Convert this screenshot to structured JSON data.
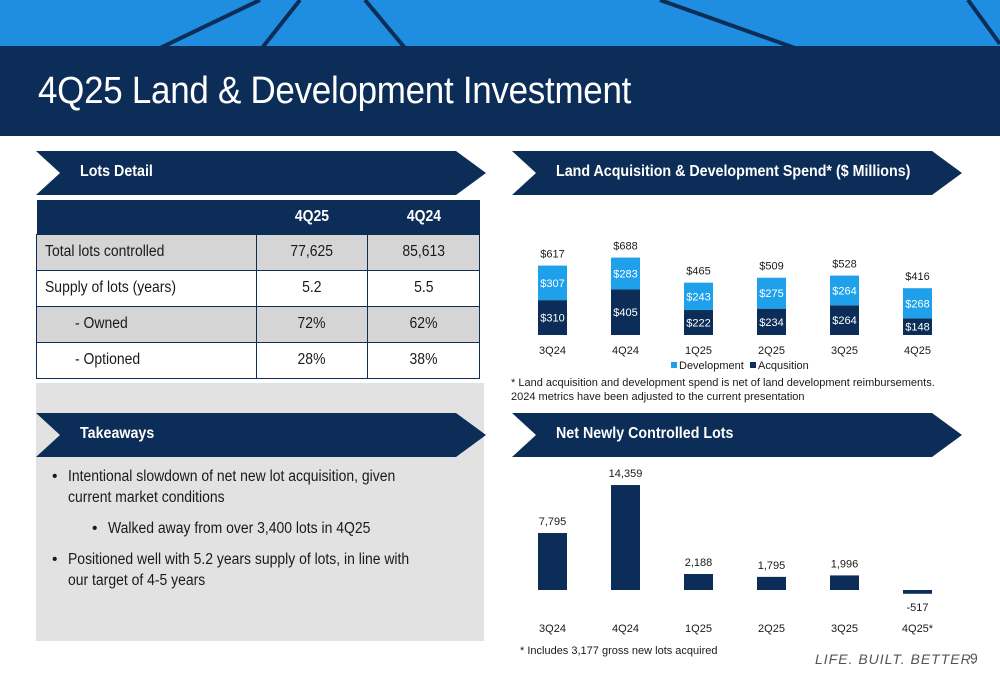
{
  "slide": {
    "title": "4Q25 Land & Development Investment",
    "page_number": "9",
    "brand_tagline": "LIFE. BUILT. BETTER.",
    "colors": {
      "navy": "#0c2d57",
      "blue": "#1f8ee0",
      "light_blue": "#1ea0ea",
      "grey_panel": "#e2e2e2"
    }
  },
  "lots_detail": {
    "header": "Lots Detail",
    "columns": [
      "",
      "4Q25",
      "4Q24"
    ],
    "rows": [
      {
        "label": "Total lots controlled",
        "q25": "77,625",
        "q24": "85,613"
      },
      {
        "label": "Supply of lots (years)",
        "q25": "5.2",
        "q24": "5.5"
      },
      {
        "label": "- Owned",
        "q25": "72%",
        "q24": "62%"
      },
      {
        "label": "- Optioned",
        "q25": "28%",
        "q24": "38%"
      }
    ]
  },
  "takeaways": {
    "header": "Takeaways",
    "bullets": [
      "Intentional slowdown of net new lot acquisition, given current market conditions",
      "Walked away from over 3,400 lots in 4Q25",
      "Positioned well with 5.2 years supply of lots, in line with our target of 4-5 years"
    ]
  },
  "spend": {
    "header": "Land Acquisition & Development Spend* ($ Millions)",
    "footnote": "* Land acquisition and development spend is net of land development reimbursements. 2024 metrics have been adjusted to the current presentation"
  },
  "net_lots": {
    "header": "Net Newly Controlled Lots",
    "footnote": "* Includes 3,177 gross new lots acquired"
  },
  "chart_data": [
    {
      "type": "bar",
      "stacked": true,
      "categories": [
        "3Q24",
        "4Q24",
        "1Q25",
        "2Q25",
        "3Q25",
        "4Q25"
      ],
      "series": [
        {
          "name": "Acqusition",
          "values": [
            310,
            405,
            222,
            234,
            264,
            148
          ],
          "labels": [
            "$310",
            "$405",
            "$222",
            "$234",
            "$264",
            "$148"
          ],
          "color": "#0c2d57"
        },
        {
          "name": "Development",
          "values": [
            307,
            283,
            243,
            275,
            264,
            268
          ],
          "labels": [
            "$307",
            "$283",
            "$243",
            "$275",
            "$264",
            "$268"
          ],
          "color": "#1ea0ea"
        }
      ],
      "totals": [
        "$617",
        "$688",
        "$465",
        "$509",
        "$528",
        "$416"
      ],
      "legend": "bottom",
      "ylim": [
        0,
        700
      ]
    },
    {
      "type": "bar",
      "categories": [
        "3Q24",
        "4Q24",
        "1Q25",
        "2Q25",
        "3Q25",
        "4Q25*"
      ],
      "values": [
        7795,
        14359,
        2188,
        1795,
        1996,
        -517
      ],
      "labels": [
        "7,795",
        "14,359",
        "2,188",
        "1,795",
        "1,996",
        "-517"
      ],
      "color": "#0c2d57",
      "ylim": [
        -517,
        14359
      ]
    }
  ]
}
